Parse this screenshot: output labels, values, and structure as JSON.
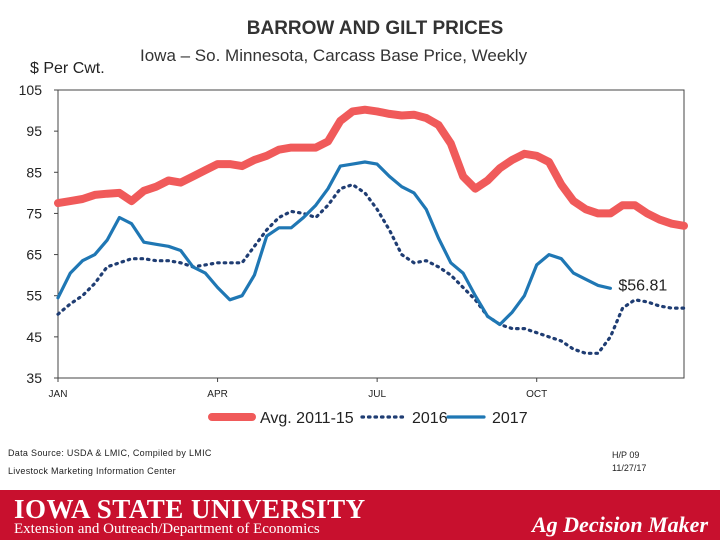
{
  "chart_data": {
    "type": "line",
    "title": "BARROW AND GILT PRICES",
    "subtitle": "Iowa – So. Minnesota, Carcass Base Price, Weekly",
    "ylabel": "$ Per Cwt.",
    "ylim": [
      35,
      105
    ],
    "yticks": [
      "105",
      "95",
      "85",
      "75",
      "65",
      "55",
      "45",
      "35"
    ],
    "yticks_values": [
      105,
      95,
      85,
      75,
      65,
      55,
      45,
      35
    ],
    "xlim": [
      1,
      52
    ],
    "xticks": [
      "JAN",
      "APR",
      "JUL",
      "OCT"
    ],
    "xticks_values": [
      1,
      14,
      27,
      40
    ],
    "annotation": "$56.81",
    "series": [
      {
        "name": "Avg. 2011-15",
        "color": "#f05a5a",
        "style": "solid-thick",
        "x": [
          1,
          2,
          3,
          4,
          5,
          6,
          7,
          8,
          9,
          10,
          11,
          12,
          13,
          14,
          15,
          16,
          17,
          18,
          19,
          20,
          21,
          22,
          23,
          24,
          25,
          26,
          27,
          28,
          29,
          30,
          31,
          32,
          33,
          34,
          35,
          36,
          37,
          38,
          39,
          40,
          41,
          42,
          43,
          44,
          45,
          46,
          47,
          48,
          49,
          50,
          51,
          52
        ],
        "values": [
          77.5,
          78,
          78.5,
          79.5,
          79.8,
          80,
          78,
          80.5,
          81.5,
          83,
          82.5,
          84,
          85.5,
          87,
          87,
          86.5,
          88,
          89,
          90.5,
          91,
          91,
          91,
          92.5,
          97.5,
          99.8,
          100.2,
          99.8,
          99.2,
          98.8,
          99,
          98.2,
          96.5,
          92,
          84,
          81,
          83,
          86,
          88,
          89.5,
          89,
          87.5,
          82,
          78,
          76,
          75,
          75,
          77,
          77,
          75,
          73.5,
          72.5,
          72
        ]
      },
      {
        "name": "2016",
        "color": "#1f3d73",
        "style": "dotted",
        "x": [
          1,
          2,
          3,
          4,
          5,
          6,
          7,
          8,
          9,
          10,
          11,
          12,
          13,
          14,
          15,
          16,
          17,
          18,
          19,
          20,
          21,
          22,
          23,
          24,
          25,
          26,
          27,
          28,
          29,
          30,
          31,
          32,
          33,
          34,
          35,
          36,
          37,
          38,
          39,
          40,
          41,
          42,
          43,
          44,
          45,
          46,
          47,
          48,
          49,
          50,
          51,
          52
        ],
        "values": [
          50.5,
          53,
          55,
          58,
          62,
          63,
          64,
          64,
          63.5,
          63.5,
          63,
          62,
          62.5,
          63,
          63,
          63,
          67,
          71,
          74,
          75.5,
          75,
          74,
          77,
          81,
          82,
          80,
          76,
          71,
          65,
          63,
          63.5,
          62,
          60,
          57,
          54,
          50,
          48,
          47,
          47,
          46,
          45,
          44,
          42,
          41,
          41,
          45,
          52,
          54,
          53.5,
          52.5,
          52,
          52
        ]
      },
      {
        "name": "2017",
        "color": "#1f77b4",
        "style": "solid",
        "x": [
          1,
          2,
          3,
          4,
          5,
          6,
          7,
          8,
          9,
          10,
          11,
          12,
          13,
          14,
          15,
          16,
          17,
          18,
          19,
          20,
          21,
          22,
          23,
          24,
          25,
          26,
          27,
          28,
          29,
          30,
          31,
          32,
          33,
          34,
          35,
          36,
          37,
          38,
          39,
          40,
          41,
          42,
          43,
          44,
          45,
          46
        ],
        "values": [
          54.5,
          60.5,
          63.5,
          65,
          68.5,
          74,
          72.5,
          68,
          67.5,
          67,
          66,
          62,
          60.5,
          57,
          54,
          55,
          60,
          69.5,
          71.5,
          71.5,
          74,
          77,
          81,
          86.5,
          87,
          87.5,
          87,
          84,
          81.5,
          80,
          76,
          69,
          63,
          60.5,
          55,
          50,
          48,
          51,
          55,
          62.5,
          65,
          64,
          60.5,
          59,
          57.5,
          56.81
        ]
      }
    ],
    "legend": [
      "Avg. 2011-15",
      "2016",
      "2017"
    ]
  },
  "notes": {
    "source": "Data Source: USDA & LMIC, Compiled by LMIC",
    "org": "Livestock Marketing Information Center",
    "code": "H/P 09",
    "date": "11/27/17"
  },
  "footer": {
    "university": "IOWA STATE UNIVERSITY",
    "department": "Extension and Outreach/Department of Economics",
    "brand": "Ag Decision Maker"
  }
}
